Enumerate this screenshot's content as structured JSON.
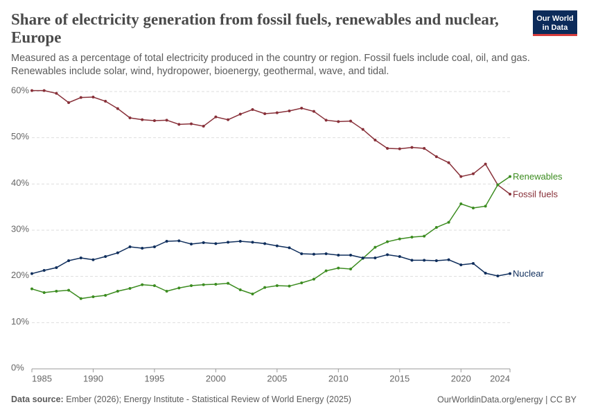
{
  "chart_data": {
    "type": "line",
    "title": [
      "Share of electricity generation from fossil fuels, renewables and nuclear,",
      "Europe"
    ],
    "subtitle": [
      "Measured as a percentage of total electricity produced in the country or region. Fossil fuels include coal, oil, and gas.",
      "Renewables include solar, wind, hydropower, bioenergy, geothermal, wave, and tidal."
    ],
    "x": [
      1985,
      1986,
      1987,
      1988,
      1989,
      1990,
      1991,
      1992,
      1993,
      1994,
      1995,
      1996,
      1997,
      1998,
      1999,
      2000,
      2001,
      2002,
      2003,
      2004,
      2005,
      2006,
      2007,
      2008,
      2009,
      2010,
      2011,
      2012,
      2013,
      2014,
      2015,
      2016,
      2017,
      2018,
      2019,
      2020,
      2021,
      2022,
      2023,
      2024
    ],
    "xlim": [
      1985,
      2024
    ],
    "xticks": [
      1985,
      1990,
      1995,
      2000,
      2005,
      2010,
      2015,
      2020,
      2024
    ],
    "ylim": [
      0,
      60
    ],
    "yticks": [
      {
        "value": 0,
        "label": "0%"
      },
      {
        "value": 10,
        "label": "10%"
      },
      {
        "value": 20,
        "label": "20%"
      },
      {
        "value": 30,
        "label": "30%"
      },
      {
        "value": 40,
        "label": "40%"
      },
      {
        "value": 50,
        "label": "50%"
      },
      {
        "value": 60,
        "label": "60%"
      }
    ],
    "grid": true,
    "series": [
      {
        "name": "Fossil fuels",
        "color": "#883039",
        "values": [
          60.2,
          60.2,
          59.6,
          57.6,
          58.7,
          58.8,
          57.9,
          56.3,
          54.3,
          53.9,
          53.7,
          53.8,
          52.9,
          53.0,
          52.5,
          54.5,
          53.9,
          55.1,
          56.1,
          55.2,
          55.4,
          55.8,
          56.4,
          55.7,
          53.8,
          53.5,
          53.6,
          51.8,
          49.5,
          47.7,
          47.6,
          47.9,
          47.7,
          45.9,
          44.6,
          41.6,
          42.2,
          44.3,
          39.8,
          37.8
        ]
      },
      {
        "name": "Renewables",
        "color": "#3c8c20",
        "values": [
          17.3,
          16.5,
          16.8,
          17.0,
          15.2,
          15.6,
          15.9,
          16.8,
          17.4,
          18.2,
          18.0,
          16.8,
          17.5,
          18.0,
          18.2,
          18.3,
          18.5,
          17.1,
          16.2,
          17.6,
          18.0,
          17.9,
          18.6,
          19.4,
          21.2,
          21.8,
          21.6,
          23.9,
          26.3,
          27.5,
          28.1,
          28.5,
          28.7,
          30.6,
          31.7,
          35.7,
          34.8,
          35.2,
          39.8,
          41.6
        ]
      },
      {
        "name": "Nuclear",
        "color": "#0f2e5c",
        "values": [
          20.6,
          21.3,
          21.9,
          23.4,
          24.0,
          23.6,
          24.3,
          25.1,
          26.4,
          26.1,
          26.4,
          27.6,
          27.7,
          27.0,
          27.3,
          27.1,
          27.4,
          27.6,
          27.4,
          27.1,
          26.6,
          26.2,
          24.9,
          24.8,
          24.9,
          24.6,
          24.6,
          24.0,
          24.0,
          24.7,
          24.3,
          23.5,
          23.5,
          23.4,
          23.6,
          22.5,
          22.8,
          20.7,
          20.1,
          20.6
        ]
      }
    ]
  },
  "logo": [
    "Our World",
    "in Data"
  ],
  "footer": {
    "source_label": "Data source:",
    "source": "Ember (2026); Energy Institute - Statistical Review of World Energy (2025)",
    "link": "OurWorldinData.org/energy | CC BY"
  }
}
